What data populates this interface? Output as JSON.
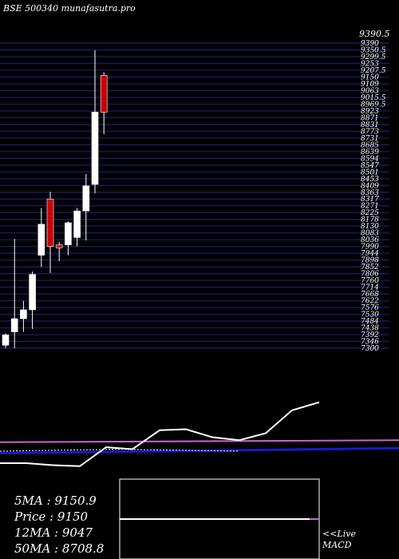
{
  "chart_data": {
    "type": "candlestick",
    "title": "BSE 500340  munafasutra.pro",
    "price_axis": {
      "top_label": "9390.5",
      "range": [
        7300,
        9400
      ],
      "tick_labels": [
        "9390",
        "9350.5",
        "9299.5",
        "9253",
        "9207.5",
        "9150",
        "9109",
        "9063",
        "9015.5",
        "8969.5",
        "8923",
        "8871",
        "8831",
        "8773",
        "8731",
        "8685",
        "8639",
        "8594",
        "8547",
        "8501",
        "8453",
        "8409",
        "8363",
        "8317",
        "8271",
        "8225",
        "8178",
        "8130",
        "8083",
        "8036",
        "7990",
        "7944",
        "7898",
        "7852",
        "7806",
        "7760",
        "7714",
        "7668",
        "7622",
        "7576",
        "7530",
        "7484",
        "7438",
        "7392",
        "7346",
        "7300"
      ]
    },
    "candles": [
      {
        "open": 7320,
        "close": 7390,
        "high": 7400,
        "low": 7300,
        "color": "white"
      },
      {
        "open": 7410,
        "close": 7500,
        "high": 8040,
        "low": 7300,
        "color": "white"
      },
      {
        "open": 7500,
        "close": 7560,
        "high": 7620,
        "low": 7410,
        "color": "white"
      },
      {
        "open": 7560,
        "close": 7800,
        "high": 7820,
        "low": 7430,
        "color": "white"
      },
      {
        "open": 7930,
        "close": 8140,
        "high": 8250,
        "low": 7850,
        "color": "white"
      },
      {
        "open": 8310,
        "close": 7990,
        "high": 8360,
        "low": 7810,
        "color": "red"
      },
      {
        "open": 8000,
        "close": 7980,
        "high": 8020,
        "low": 7890,
        "color": "red"
      },
      {
        "open": 8000,
        "close": 8150,
        "high": 8160,
        "low": 7930,
        "color": "white"
      },
      {
        "open": 8050,
        "close": 8230,
        "high": 8250,
        "low": 7990,
        "color": "white"
      },
      {
        "open": 8230,
        "close": 8400,
        "high": 8480,
        "low": 8030,
        "color": "white"
      },
      {
        "open": 8410,
        "close": 8900,
        "high": 9320,
        "low": 8350,
        "color": "white"
      },
      {
        "open": 9150,
        "close": 8900,
        "high": 9170,
        "low": 8750,
        "color": "red"
      }
    ],
    "indicators": {
      "ma5": 9150.9,
      "price": 9150,
      "ma12": 9047,
      "ma50": 8708.8
    },
    "labels": {
      "ma5_label": "5MA : 9150.9",
      "price_label": "Price  : 9150",
      "ma12_label": "12MA : 9047",
      "ma50_label": "50MA : 8708.8",
      "live_label": "<<Live",
      "macd_label": "MACD"
    },
    "lower_panel": {
      "white_line": [
        0.32,
        0.32,
        0.3,
        0.29,
        0.48,
        0.46,
        0.65,
        0.66,
        0.58,
        0.55,
        0.62,
        0.85,
        0.93,
        1.0
      ],
      "purple_line": [
        0.53,
        0.55
      ],
      "blue_line": [
        0.42,
        0.47
      ],
      "dotted_line": [
        0.44,
        0.46,
        0.44
      ]
    },
    "colors": {
      "background": "#000000",
      "grid": "#1a1a66",
      "bull_candle": "#ffffff",
      "bear_candle": "#cc0000",
      "ma_blue": "#1a1acc",
      "ma_purple": "#cc66cc",
      "text": "#ffffff"
    }
  }
}
